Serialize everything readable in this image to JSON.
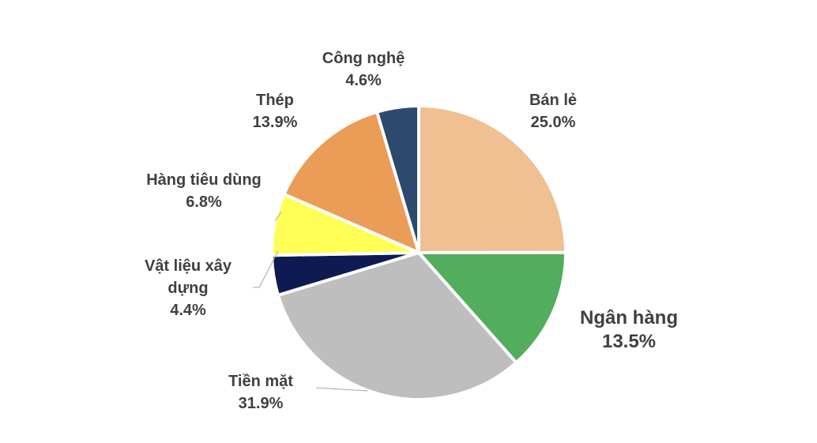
{
  "chart_data": {
    "type": "pie",
    "title": "",
    "slices": [
      {
        "label": "Bán lẻ",
        "value": 25.0,
        "value_label": "25.0%",
        "color": "#F0C092"
      },
      {
        "label": "Ngân hàng",
        "value": 13.5,
        "value_label": "13.5%",
        "color": "#52AE5C"
      },
      {
        "label": "Tiền mặt",
        "value": 31.9,
        "value_label": "31.9%",
        "color": "#BEBEBE"
      },
      {
        "label": "Vật liệu xây dựng",
        "value": 4.4,
        "value_label": "4.4%",
        "color": "#0D1B52"
      },
      {
        "label": "Hàng tiêu dùng",
        "value": 6.8,
        "value_label": "6.8%",
        "color": "#FFFF55"
      },
      {
        "label": "Thép",
        "value": 13.9,
        "value_label": "13.9%",
        "color": "#EB9C57"
      },
      {
        "label": "Công nghệ",
        "value": 4.6,
        "value_label": "4.6%",
        "color": "#2D4A6E"
      }
    ],
    "start_angle": "12 o'clock",
    "direction": "clockwise",
    "legend": "none"
  }
}
